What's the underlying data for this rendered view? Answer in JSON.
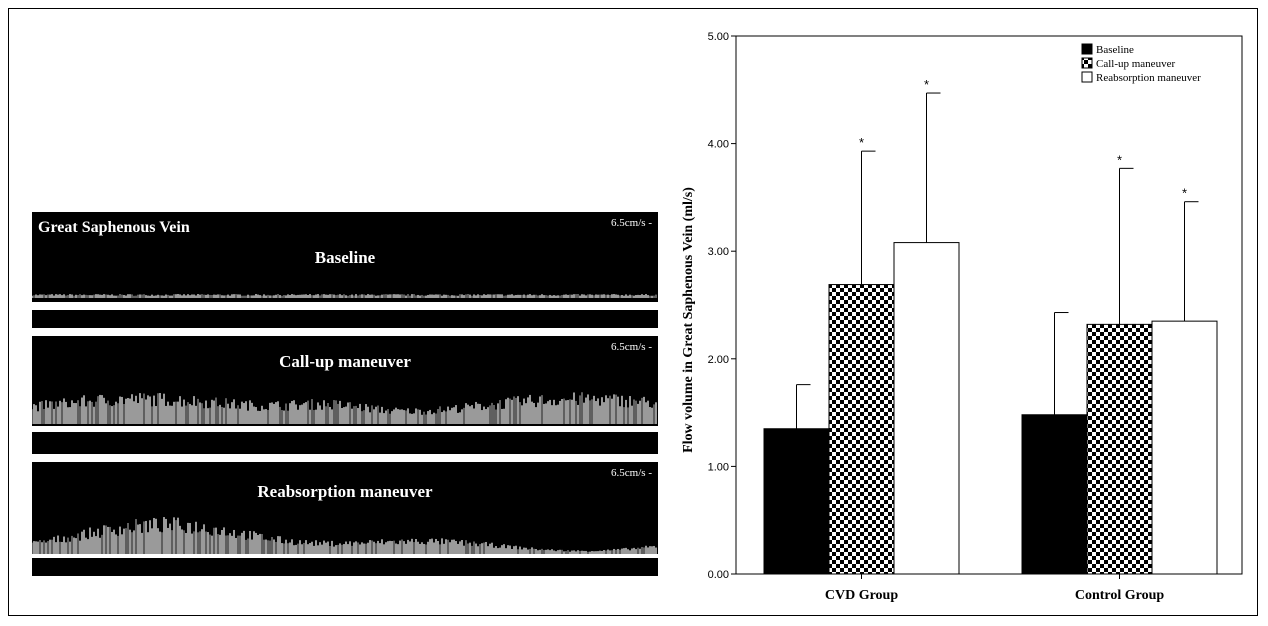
{
  "doppler": {
    "vessel": "Great Saphenous Vein",
    "scale": "6.5cm/s -",
    "panels": [
      {
        "title": "Baseline",
        "amplitude": 0.1
      },
      {
        "title": "Call-up maneuver",
        "amplitude": 0.55
      },
      {
        "title": "Reabsorption maneuver",
        "amplitude": 0.6
      }
    ]
  },
  "chart_data": {
    "type": "bar",
    "ylabel": "Flow volume in Great Saphenous Vein (ml/s)",
    "ylim": [
      0,
      5
    ],
    "yticks": [
      "0.00",
      "1.00",
      "2.00",
      "3.00",
      "4.00",
      "5.00"
    ],
    "categories": [
      "CVD Group",
      "Control Group"
    ],
    "series": [
      {
        "name": "Baseline",
        "values": [
          1.35,
          1.48
        ],
        "errors": [
          0.41,
          0.95
        ],
        "significant": [
          false,
          false
        ],
        "fill": "black"
      },
      {
        "name": "Call-up maneuver",
        "values": [
          2.69,
          2.32
        ],
        "errors": [
          1.24,
          1.45
        ],
        "significant": [
          true,
          true
        ],
        "fill": "checker"
      },
      {
        "name": "Reabsorption maneuver",
        "values": [
          3.08,
          2.35
        ],
        "errors": [
          1.39,
          1.11
        ],
        "significant": [
          true,
          true
        ],
        "fill": "white"
      }
    ],
    "significance_marker": "*",
    "legend_position": "top-right"
  }
}
